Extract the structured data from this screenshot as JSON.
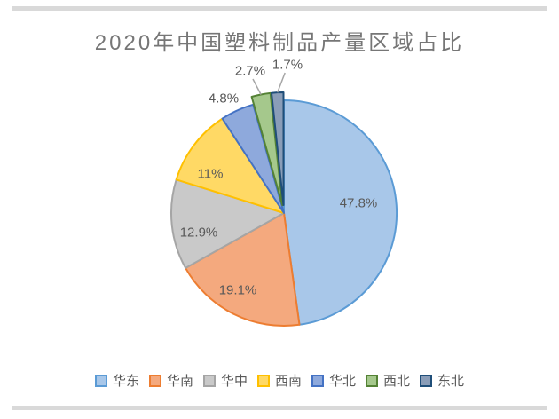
{
  "frame": {
    "bar_color": "#D9D9D9"
  },
  "chart_data": {
    "type": "pie",
    "title": "2020年中国塑料制品产量区域占比",
    "start_angle_deg": 0,
    "direction": "clockwise",
    "legend_position": "bottom",
    "total": 100,
    "label_color": "#595959",
    "title_color": "#767676",
    "leader_line_color": "#A6A6A6",
    "series": [
      {
        "key": "huadong",
        "name": "华东",
        "value": 47.8,
        "label": "47.8%",
        "fill": "#A8C7E9",
        "stroke": "#5B9BD5",
        "exploded": false
      },
      {
        "key": "huanan",
        "name": "华南",
        "value": 19.1,
        "label": "19.1%",
        "fill": "#F4A97E",
        "stroke": "#ED7D31",
        "exploded": false
      },
      {
        "key": "huazhong",
        "name": "华中",
        "value": 12.9,
        "label": "12.9%",
        "fill": "#C9C9C9",
        "stroke": "#A5A5A5",
        "exploded": false
      },
      {
        "key": "xinan",
        "name": "西南",
        "value": 11.0,
        "label": "11%",
        "fill": "#FFD965",
        "stroke": "#FFC000",
        "exploded": false
      },
      {
        "key": "huabei",
        "name": "华北",
        "value": 4.8,
        "label": "4.8%",
        "fill": "#8EA9DC",
        "stroke": "#4472C4",
        "exploded": false
      },
      {
        "key": "xibei",
        "name": "西北",
        "value": 2.7,
        "label": "2.7%",
        "fill": "#A5C88C",
        "stroke": "#548235",
        "exploded": true
      },
      {
        "key": "dongbei",
        "name": "东北",
        "value": 1.7,
        "label": "1.7%",
        "fill": "#8A9DB8",
        "stroke": "#1F4E79",
        "exploded": true
      }
    ]
  }
}
